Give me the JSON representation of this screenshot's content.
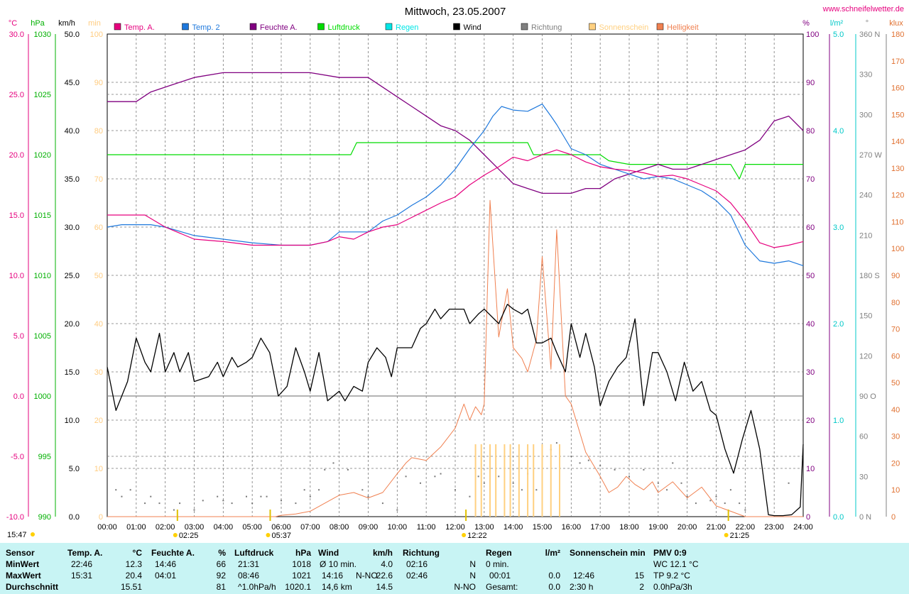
{
  "header": {
    "title": "Mittwoch, 23.05.2007",
    "website": "www.schneifelwetter.de"
  },
  "units": {
    "left": [
      {
        "label": "°C",
        "color": "#e6007e"
      },
      {
        "label": "hPa",
        "color": "#00b000"
      },
      {
        "label": "km/h",
        "color": "#000000"
      },
      {
        "label": "min",
        "color": "#ffcc80"
      }
    ],
    "right": [
      {
        "label": "%",
        "color": "#800080"
      },
      {
        "label": "l/m²",
        "color": "#00c8c8"
      },
      {
        "label": "°",
        "color": "#808080"
      },
      {
        "label": "klux",
        "color": "#e07030"
      }
    ]
  },
  "legend": [
    {
      "label": "Temp. A.",
      "color": "#e6007e"
    },
    {
      "label": "Temp. 2",
      "color": "#1e78dc"
    },
    {
      "label": "Feuchte A.",
      "color": "#800080"
    },
    {
      "label": "Luftdruck",
      "color": "#00dc00"
    },
    {
      "label": "Regen",
      "color": "#00e6e6"
    },
    {
      "label": "Wind",
      "color": "#000000"
    },
    {
      "label": "Richtung",
      "color": "#808080"
    },
    {
      "label": "Sonnenschein",
      "color": "#ffd080"
    },
    {
      "label": "Helligkeit",
      "color": "#f08050"
    }
  ],
  "chart_data": {
    "type": "line",
    "x_ticks": [
      "00:00",
      "01:00",
      "02:00",
      "03:00",
      "04:00",
      "05:00",
      "06:00",
      "07:00",
      "08:00",
      "09:00",
      "10:00",
      "11:00",
      "12:00",
      "13:00",
      "14:00",
      "15:00",
      "16:00",
      "17:00",
      "18:00",
      "19:00",
      "20:00",
      "21:00",
      "22:00",
      "23:00",
      "24:00"
    ],
    "axes": {
      "temp_c": [
        "30.0",
        "25.0",
        "20.0",
        "15.0",
        "10.0",
        "5.0",
        "0.0",
        "-5.0",
        "-10.0"
      ],
      "pressure_hpa": [
        "1030",
        "1025",
        "1020",
        "1015",
        "1010",
        "1005",
        "1000",
        "995",
        "990"
      ],
      "wind_kmh": [
        "50.0",
        "45.0",
        "40.0",
        "35.0",
        "30.0",
        "25.0",
        "20.0",
        "15.0",
        "10.0",
        "5.0",
        "0.0"
      ],
      "sun_min": [
        "100",
        "90",
        "80",
        "70",
        "60",
        "50",
        "40",
        "30",
        "20",
        "10",
        "0"
      ],
      "humidity_pct": [
        "100",
        "90",
        "80",
        "70",
        "60",
        "50",
        "40",
        "30",
        "20",
        "10",
        "0"
      ],
      "rain_lm2": [
        "5.0",
        "4.0",
        "3.0",
        "2.0",
        "1.0",
        "0.0"
      ],
      "direction_deg": [
        "360 N",
        "330",
        "300",
        "270 W",
        "240",
        "210",
        "180 S",
        "150",
        "120",
        "90 O",
        "60",
        "30",
        "0 N"
      ],
      "light_klux": [
        "180",
        "170",
        "160",
        "150",
        "140",
        "130",
        "120",
        "110",
        "100",
        "90",
        "80",
        "70",
        "60",
        "50",
        "40",
        "30",
        "20",
        "10",
        "0"
      ]
    },
    "sun_events": [
      {
        "time": "02:25",
        "label": "02:25"
      },
      {
        "time": "05:37",
        "label": "05:37"
      },
      {
        "time": "12:22",
        "label": "12:22"
      },
      {
        "time": "21:25",
        "label": "21:25"
      }
    ],
    "corner_time": "15:47",
    "series": [
      {
        "name": "Temp. A.",
        "unit": "°C",
        "x": [
          0,
          1,
          1.3,
          2,
          3,
          4,
          5,
          6,
          7,
          7.6,
          8,
          8.5,
          9,
          9.5,
          10,
          10.5,
          11,
          11.5,
          12,
          12.5,
          13,
          13.5,
          14,
          14.5,
          15,
          15.5,
          16,
          16.5,
          17,
          17.5,
          18,
          18.5,
          19,
          19.5,
          20,
          20.5,
          21,
          21.5,
          22,
          22.5,
          23,
          23.5,
          24
        ],
        "values": [
          15.0,
          15.0,
          15.0,
          14.0,
          13.0,
          12.8,
          12.5,
          12.5,
          12.5,
          12.8,
          13.2,
          13.0,
          13.6,
          14.0,
          14.2,
          14.8,
          15.4,
          16.0,
          16.5,
          17.5,
          18.3,
          19.0,
          19.8,
          19.5,
          20.0,
          20.4,
          20.0,
          19.4,
          19.0,
          18.8,
          18.7,
          18.5,
          18.2,
          18.3,
          18.0,
          17.5,
          17.0,
          16.0,
          14.5,
          12.7,
          12.3,
          12.5,
          12.8
        ]
      },
      {
        "name": "Temp. 2",
        "unit": "°C",
        "x": [
          0,
          0.5,
          1.5,
          2,
          3,
          4,
          5,
          6,
          7,
          7.6,
          8,
          8.5,
          9,
          9.5,
          10,
          10.5,
          11,
          11.5,
          12,
          12.5,
          13,
          13.3,
          13.6,
          14,
          14.5,
          15,
          15.3,
          15.5,
          16,
          16.5,
          17,
          17.5,
          18,
          18.5,
          19,
          19.5,
          20,
          20.5,
          21,
          21.5,
          22,
          22.5,
          23,
          23.5,
          24
        ],
        "values": [
          14.0,
          14.2,
          14.2,
          14.0,
          13.3,
          13.0,
          12.7,
          12.5,
          12.5,
          12.8,
          13.6,
          13.6,
          13.6,
          14.5,
          15.0,
          15.8,
          16.5,
          17.5,
          18.8,
          20.5,
          22.0,
          23.2,
          24.0,
          23.7,
          23.6,
          24.2,
          23.2,
          22.5,
          20.5,
          20.0,
          19.2,
          18.8,
          18.4,
          18.0,
          18.2,
          18.0,
          17.5,
          17.0,
          16.2,
          15.0,
          12.5,
          11.2,
          11.0,
          11.2,
          10.8
        ]
      },
      {
        "name": "Feuchte A.",
        "unit": "%",
        "x": [
          0,
          1,
          1.5,
          2,
          3,
          4,
          5,
          6,
          7,
          8,
          9,
          9.5,
          10,
          10.5,
          11,
          11.5,
          12,
          12.5,
          13,
          13.5,
          14,
          14.5,
          15,
          15.5,
          16,
          16.5,
          17,
          17.5,
          18,
          18.5,
          19,
          19.5,
          20,
          20.5,
          21,
          21.5,
          22,
          22.5,
          23,
          23.5,
          24
        ],
        "values": [
          86,
          86,
          88,
          89,
          91,
          92,
          92,
          92,
          92,
          91,
          91,
          89,
          87,
          85,
          83,
          81,
          80,
          78,
          75,
          72,
          69,
          68,
          67,
          67,
          67,
          68,
          68,
          70,
          71,
          72,
          73,
          72,
          72,
          73,
          74,
          75,
          76,
          78,
          82,
          83,
          80
        ]
      },
      {
        "name": "Luftdruck",
        "unit": "hPa",
        "x": [
          0,
          8.4,
          8.6,
          14.5,
          14.7,
          17,
          17.3,
          18,
          20,
          21,
          21.5,
          21.8,
          22,
          24
        ],
        "values": [
          1020,
          1020,
          1021,
          1021,
          1020,
          1020,
          1019.5,
          1019.2,
          1019.2,
          1019.2,
          1019.2,
          1018,
          1019.2,
          1019.2
        ]
      },
      {
        "name": "Wind",
        "unit": "km/h",
        "x": [
          0,
          0.3,
          0.7,
          1.0,
          1.3,
          1.5,
          1.8,
          2.0,
          2.3,
          2.5,
          2.8,
          3.0,
          3.5,
          3.8,
          4.0,
          4.3,
          4.5,
          4.8,
          5.0,
          5.3,
          5.6,
          5.9,
          6.2,
          6.5,
          6.8,
          7.0,
          7.3,
          7.6,
          8.0,
          8.2,
          8.5,
          8.8,
          9.0,
          9.3,
          9.6,
          9.8,
          10.0,
          10.3,
          10.5,
          10.8,
          11.0,
          11.3,
          11.5,
          11.8,
          12.0,
          12.3,
          12.5,
          12.8,
          13.0,
          13.5,
          13.8,
          14.0,
          14.3,
          14.5,
          14.8,
          15.0,
          15.3,
          15.5,
          15.8,
          16.0,
          16.3,
          16.5,
          16.8,
          17.0,
          17.3,
          17.6,
          17.9,
          18.2,
          18.5,
          18.8,
          19.0,
          19.3,
          19.6,
          19.9,
          20.2,
          20.5,
          20.8,
          21.0,
          21.3,
          21.6,
          21.9,
          22.2,
          22.5,
          22.8,
          23.0,
          23.3,
          23.6,
          23.9,
          24.0
        ],
        "values": [
          15.5,
          11,
          14,
          18.5,
          16,
          15,
          19,
          15,
          17,
          15,
          17,
          14,
          14.5,
          16,
          14.5,
          16.5,
          15.5,
          16,
          16.5,
          18.5,
          17,
          12.5,
          13.5,
          17.5,
          15,
          13,
          17,
          12,
          13,
          12,
          13.5,
          13,
          16,
          17.5,
          16.5,
          14.5,
          17.5,
          17.5,
          17.5,
          19.5,
          20,
          21.5,
          20.5,
          21.5,
          21.5,
          21.5,
          20,
          21,
          21.5,
          20,
          22,
          21.5,
          21,
          21.5,
          18,
          18,
          18.5,
          17,
          15,
          20,
          16.5,
          19,
          15.5,
          11.5,
          14,
          15.5,
          16.5,
          20.5,
          11.5,
          17,
          17,
          15,
          12,
          16,
          13,
          14,
          11,
          10.5,
          7,
          4.5,
          8,
          11,
          7,
          0.2,
          0.1,
          0.1,
          0.2,
          1,
          7.5
        ]
      },
      {
        "name": "Helligkeit",
        "unit": "klux",
        "x": [
          0,
          5.8,
          6.0,
          6.5,
          7.0,
          7.5,
          8.0,
          8.5,
          9.0,
          9.5,
          10.0,
          10.3,
          10.5,
          11.0,
          11.5,
          12.0,
          12.3,
          12.5,
          12.7,
          12.9,
          13.0,
          13.2,
          13.5,
          13.8,
          14.0,
          14.3,
          14.5,
          14.8,
          15.0,
          15.3,
          15.5,
          15.8,
          16.0,
          16.5,
          17.0,
          17.3,
          17.6,
          17.9,
          18.2,
          18.5,
          18.8,
          19.0,
          19.5,
          20.0,
          20.5,
          21.0,
          21.5,
          22.0,
          24.0
        ],
        "values": [
          0,
          0,
          0.5,
          1,
          2,
          5,
          8,
          9,
          7,
          9,
          16,
          20,
          22,
          21,
          26,
          33,
          42,
          36,
          41,
          38,
          42,
          118,
          67,
          85,
          63,
          59,
          54,
          66,
          97,
          55,
          107,
          45,
          42,
          24,
          15,
          9,
          11,
          15,
          12,
          10,
          13,
          9,
          13,
          7,
          11,
          4,
          2,
          0,
          0
        ]
      },
      {
        "name": "Sonnenschein",
        "unit": "min",
        "x": [
          12.7,
          12.9,
          13.2,
          13.4,
          13.7,
          13.9,
          14.2,
          14.5,
          14.7,
          15.0,
          15.3,
          15.6
        ],
        "values": [
          15,
          15,
          15,
          15,
          15,
          15,
          15,
          15,
          15,
          15,
          15,
          15
        ]
      },
      {
        "name": "Richtung",
        "unit": "°",
        "x": [
          0.3,
          0.5,
          0.8,
          1.3,
          1.5,
          1.8,
          2.3,
          2.5,
          3.0,
          3.3,
          3.8,
          4.0,
          4.3,
          4.8,
          5.0,
          5.3,
          5.5,
          6.0,
          6.5,
          6.8,
          7.0,
          7.3,
          7.5,
          7.8,
          8.3,
          8.8,
          9.0,
          9.5,
          10.0,
          10.3,
          10.8,
          11.3,
          11.5,
          12.0,
          12.5,
          12.8,
          13.0,
          13.5,
          14.0,
          14.3,
          14.5,
          14.8,
          15.0,
          15.3,
          15.5,
          16.0,
          16.3,
          16.6,
          17.0,
          17.5,
          18.0,
          18.5,
          19.0,
          19.3,
          19.5,
          19.8,
          20.0,
          20.3,
          20.8,
          21.0,
          21.3,
          21.5,
          21.8,
          22.0,
          23.5
        ],
        "values": [
          20,
          15,
          20,
          10,
          15,
          10,
          5,
          10,
          5,
          12,
          15,
          12,
          10,
          15,
          10,
          15,
          15,
          12,
          10,
          20,
          15,
          20,
          35,
          40,
          35,
          20,
          15,
          10,
          5,
          30,
          25,
          30,
          32,
          20,
          15,
          30,
          25,
          30,
          25,
          20,
          32,
          20,
          25,
          50,
          55,
          45,
          40,
          42,
          38,
          35,
          30,
          35,
          25,
          20,
          40,
          25,
          15,
          10,
          12,
          15,
          10,
          20,
          10,
          5,
          25
        ]
      }
    ]
  },
  "summary": {
    "sensor": {
      "title": "Sensor",
      "rows": [
        "MinWert",
        "MaxWert",
        "Durchschnitt"
      ]
    },
    "temp": {
      "title": "Temp. A.",
      "unit": "°C",
      "times": [
        "22:46",
        "15:31",
        ""
      ],
      "values": [
        "12.3",
        "20.4",
        "15.51"
      ]
    },
    "humidity": {
      "title": "Feuchte A.",
      "unit": "%",
      "times": [
        "14:46",
        "04:01",
        ""
      ],
      "values": [
        "66",
        "92",
        "81"
      ]
    },
    "pressure": {
      "title": "Luftdruck",
      "unit": "hPa",
      "times": [
        "21:31",
        "08:46",
        "^1.0hPa/h"
      ],
      "values": [
        "1018",
        "1021",
        "1020.1"
      ]
    },
    "wind": {
      "title": "Wind",
      "unit": "km/h",
      "col1": [
        "Ø 10 min.",
        "14:16",
        "14,6 km"
      ],
      "col2": [
        "",
        "N-NO",
        ""
      ],
      "values": [
        "4.0",
        "22.6",
        "14.5"
      ]
    },
    "direction": {
      "title": "Richtung",
      "times": [
        "02:16",
        "02:46",
        ""
      ],
      "values": [
        "N",
        "N",
        "N-NO"
      ]
    },
    "rain": {
      "title": "Regen",
      "unit": "l/m²",
      "col1": [
        "0 min.",
        "00:01",
        "Gesamt:"
      ],
      "values": [
        "",
        "0.0",
        "0.0"
      ]
    },
    "sunshine": {
      "title": "Sonnenschein min",
      "col1": [
        "",
        "12:46",
        "2:30 h"
      ],
      "values": [
        "",
        "15",
        "2"
      ]
    },
    "pmv": {
      "title": "PMV 0:9",
      "lines": [
        "WC 12.1 °C",
        "TP 9.2 °C",
        "0.0hPa/3h"
      ]
    }
  }
}
